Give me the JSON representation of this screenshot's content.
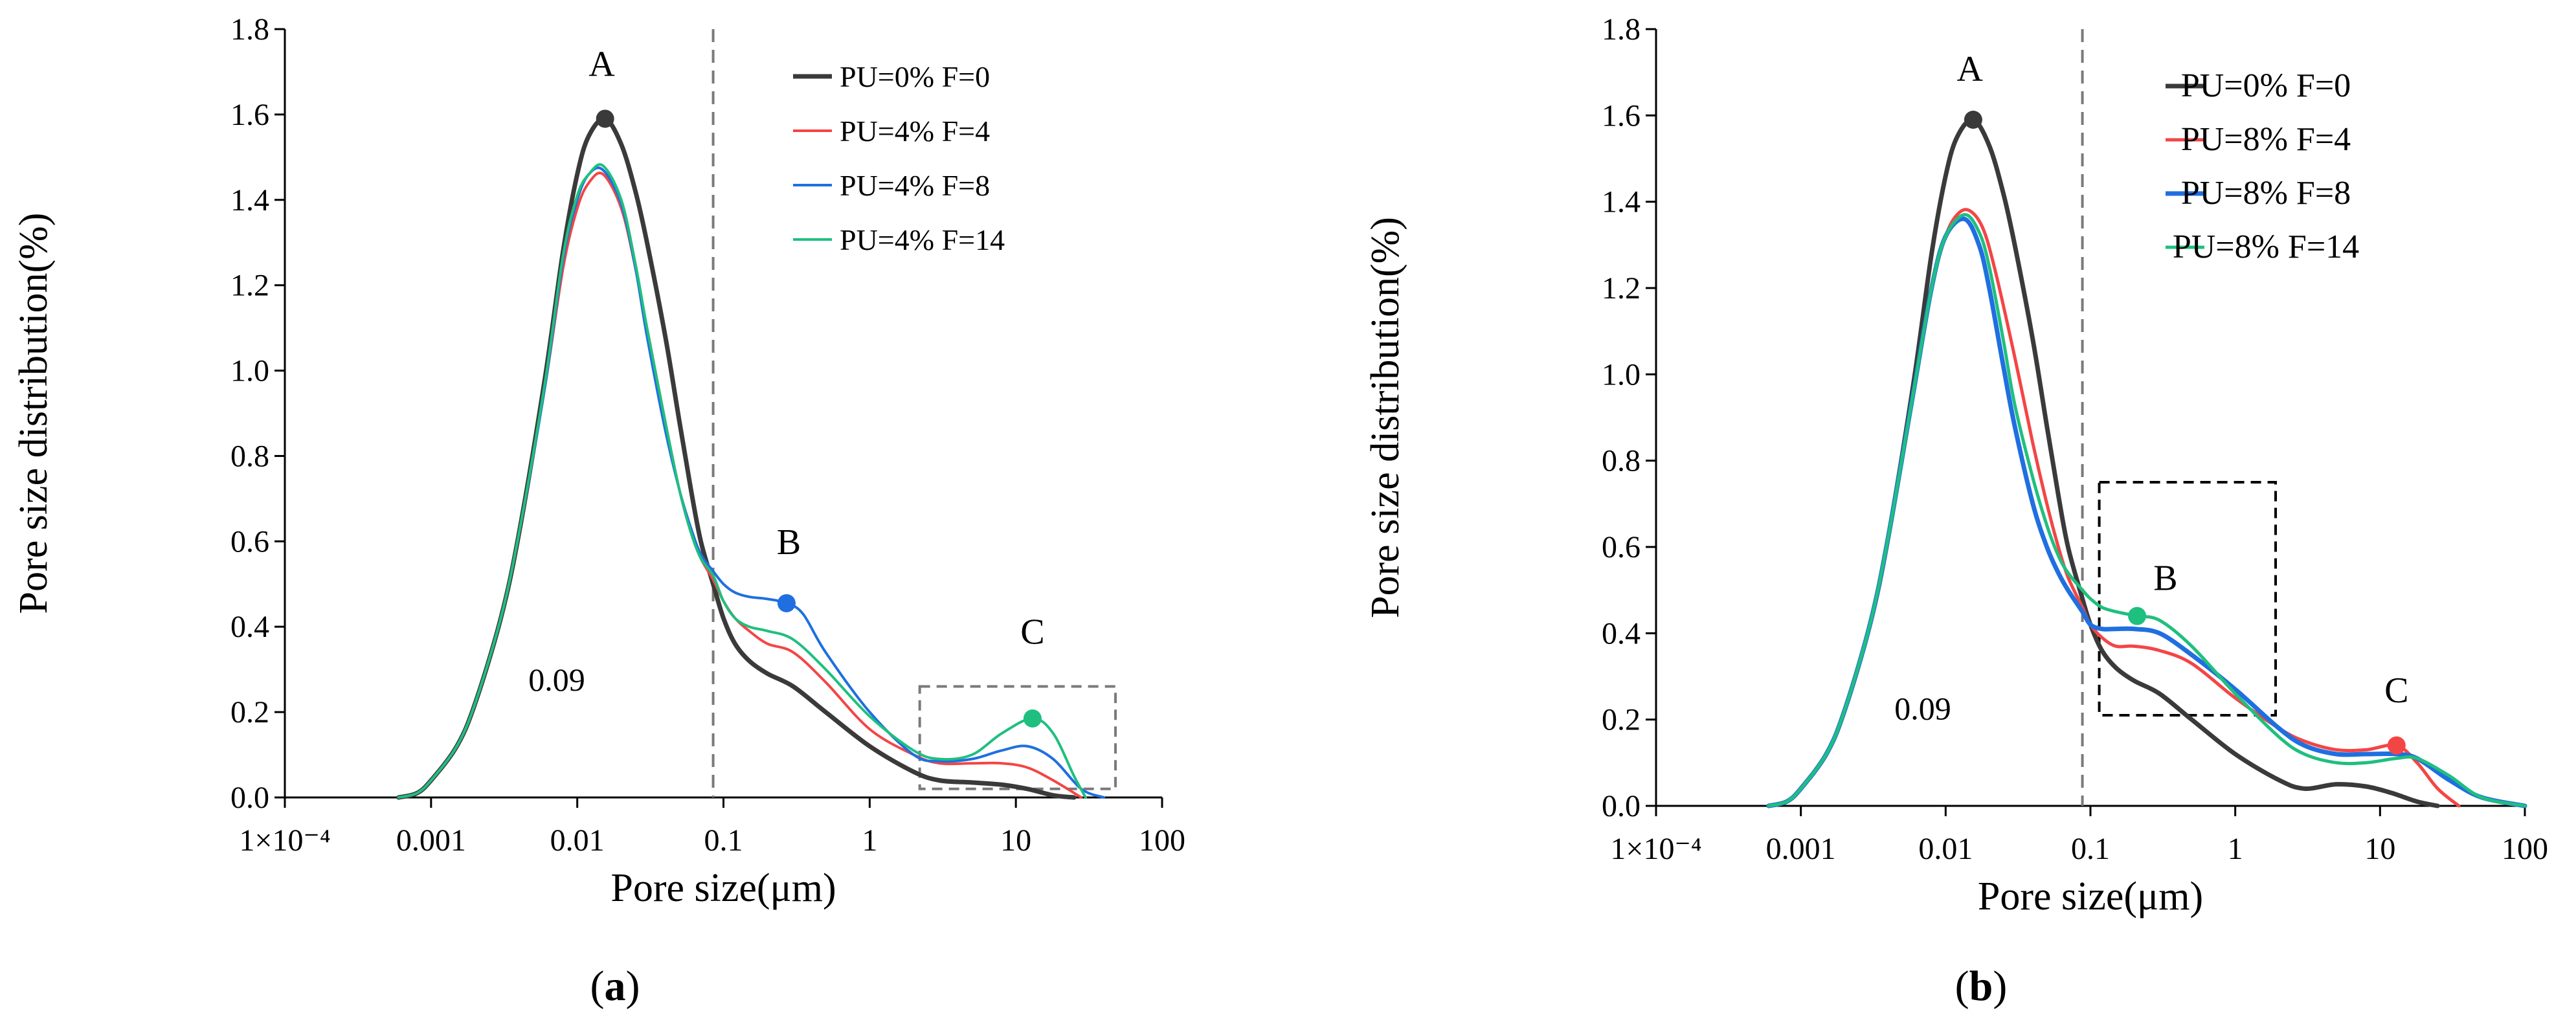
{
  "colors": {
    "ref": "#3a3a3a",
    "red": "#f44545",
    "blue": "#1f6fe0",
    "green": "#1fbf7f",
    "axis": "#000000",
    "guide": "#7a7a7a"
  },
  "chart_data": [
    {
      "type": "line",
      "panel_label_open": "(",
      "panel_label": "a",
      "panel_label_close": ")",
      "xlabel": "Pore size(μm)",
      "ylabel": "Pore size distribution(%)",
      "xscale": "log",
      "xlim": [
        0.0001,
        100
      ],
      "ylim": [
        0,
        1.8
      ],
      "xticks": [
        {
          "value": 0.0001,
          "label": "1×10⁻⁴"
        },
        {
          "value": 0.001,
          "label": "0.001"
        },
        {
          "value": 0.01,
          "label": "0.01"
        },
        {
          "value": 0.1,
          "label": "0.1"
        },
        {
          "value": 1,
          "label": "1"
        },
        {
          "value": 10,
          "label": "10"
        },
        {
          "value": 100,
          "label": "100"
        }
      ],
      "yticks": [
        "0.0",
        "0.2",
        "0.4",
        "0.6",
        "0.8",
        "1.0",
        "1.2",
        "1.4",
        "1.6",
        "1.8"
      ],
      "legend_position": "top-right",
      "vline": {
        "x": 0.085,
        "label": "0.09",
        "label_y": 0.25
      },
      "box": {
        "x": [
          2.2,
          48
        ],
        "y": [
          0.02,
          0.26
        ]
      },
      "annotations": [
        {
          "label": "A",
          "x": 0.0147,
          "y": 1.69
        },
        {
          "label": "B",
          "x": 0.28,
          "y": 0.57
        },
        {
          "label": "C",
          "x": 13,
          "y": 0.36
        }
      ],
      "markers": [
        {
          "series": 0,
          "x": 0.0155,
          "y": 1.59
        },
        {
          "series": 2,
          "x": 0.27,
          "y": 0.455
        },
        {
          "series": 3,
          "x": 13,
          "y": 0.185
        }
      ],
      "series": [
        {
          "name": "PU=0% F=0",
          "color": "#3a3a3a",
          "width": 7,
          "x": [
            0.0006,
            0.0008,
            0.001,
            0.0015,
            0.002,
            0.003,
            0.004,
            0.006,
            0.008,
            0.01,
            0.012,
            0.0155,
            0.02,
            0.025,
            0.03,
            0.04,
            0.05,
            0.06,
            0.07,
            0.085,
            0.1,
            0.12,
            0.15,
            0.2,
            0.3,
            0.5,
            1,
            2,
            3,
            5,
            8,
            12,
            18,
            25
          ],
          "y": [
            0,
            0.01,
            0.04,
            0.12,
            0.22,
            0.42,
            0.62,
            0.98,
            1.28,
            1.46,
            1.55,
            1.59,
            1.53,
            1.42,
            1.3,
            1.08,
            0.88,
            0.72,
            0.6,
            0.5,
            0.42,
            0.36,
            0.32,
            0.29,
            0.26,
            0.2,
            0.12,
            0.06,
            0.04,
            0.035,
            0.03,
            0.02,
            0.005,
            0
          ]
        },
        {
          "name": "PU=4% F=4",
          "color": "#f44545",
          "width": 4,
          "x": [
            0.0006,
            0.0008,
            0.001,
            0.0015,
            0.002,
            0.003,
            0.004,
            0.006,
            0.008,
            0.01,
            0.012,
            0.015,
            0.02,
            0.025,
            0.03,
            0.04,
            0.05,
            0.06,
            0.07,
            0.085,
            0.1,
            0.12,
            0.15,
            0.2,
            0.3,
            0.5,
            1,
            2,
            3,
            5,
            8,
            12,
            18,
            28
          ],
          "y": [
            0,
            0.01,
            0.04,
            0.12,
            0.22,
            0.42,
            0.62,
            0.96,
            1.24,
            1.38,
            1.44,
            1.46,
            1.38,
            1.24,
            1.1,
            0.88,
            0.72,
            0.62,
            0.56,
            0.51,
            0.46,
            0.42,
            0.39,
            0.36,
            0.34,
            0.27,
            0.16,
            0.1,
            0.08,
            0.08,
            0.08,
            0.07,
            0.04,
            0
          ]
        },
        {
          "name": "PU=4% F=8",
          "color": "#1f6fe0",
          "width": 4,
          "x": [
            0.0006,
            0.0008,
            0.001,
            0.0015,
            0.002,
            0.003,
            0.004,
            0.006,
            0.008,
            0.01,
            0.012,
            0.015,
            0.02,
            0.025,
            0.03,
            0.04,
            0.05,
            0.06,
            0.07,
            0.085,
            0.1,
            0.12,
            0.15,
            0.2,
            0.27,
            0.35,
            0.5,
            1,
            2,
            3,
            5,
            8,
            12,
            18,
            28,
            40
          ],
          "y": [
            0,
            0.01,
            0.04,
            0.12,
            0.22,
            0.42,
            0.62,
            0.96,
            1.26,
            1.4,
            1.46,
            1.47,
            1.39,
            1.24,
            1.08,
            0.86,
            0.72,
            0.63,
            0.57,
            0.53,
            0.5,
            0.48,
            0.47,
            0.465,
            0.455,
            0.43,
            0.34,
            0.2,
            0.1,
            0.085,
            0.09,
            0.11,
            0.12,
            0.09,
            0.02,
            0
          ]
        },
        {
          "name": "PU=4% F=14",
          "color": "#1fbf7f",
          "width": 4,
          "x": [
            0.0006,
            0.0008,
            0.001,
            0.0015,
            0.002,
            0.003,
            0.004,
            0.006,
            0.008,
            0.01,
            0.012,
            0.015,
            0.02,
            0.025,
            0.03,
            0.04,
            0.05,
            0.06,
            0.07,
            0.085,
            0.1,
            0.12,
            0.15,
            0.2,
            0.3,
            0.5,
            1,
            2,
            3,
            5,
            8,
            13,
            18,
            25,
            30
          ],
          "y": [
            0,
            0.01,
            0.04,
            0.12,
            0.22,
            0.42,
            0.62,
            0.97,
            1.27,
            1.41,
            1.46,
            1.48,
            1.4,
            1.25,
            1.1,
            0.88,
            0.72,
            0.62,
            0.56,
            0.52,
            0.46,
            0.42,
            0.4,
            0.39,
            0.37,
            0.3,
            0.19,
            0.11,
            0.09,
            0.1,
            0.15,
            0.185,
            0.15,
            0.05,
            0
          ]
        }
      ]
    },
    {
      "type": "line",
      "panel_label_open": "(",
      "panel_label": "b",
      "panel_label_close": ")",
      "xlabel": "Pore size(μm)",
      "ylabel": "Pore size distribution(%)",
      "xscale": "log",
      "xlim": [
        0.0001,
        100
      ],
      "ylim": [
        0,
        1.8
      ],
      "xticks": [
        {
          "value": 0.0001,
          "label": "1×10⁻⁴"
        },
        {
          "value": 0.001,
          "label": "0.001"
        },
        {
          "value": 0.01,
          "label": "0.01"
        },
        {
          "value": 0.1,
          "label": "0.1"
        },
        {
          "value": 1,
          "label": "1"
        },
        {
          "value": 10,
          "label": "10"
        },
        {
          "value": 100,
          "label": "100"
        }
      ],
      "yticks": [
        "0.0",
        "0.2",
        "0.4",
        "0.6",
        "0.8",
        "1.0",
        "1.2",
        "1.4",
        "1.6",
        "1.8"
      ],
      "legend_position": "top-right",
      "vline": {
        "x": 0.088,
        "label": "0.09",
        "label_y": 0.2
      },
      "box": {
        "x": [
          0.115,
          1.9
        ],
        "y": [
          0.21,
          0.75
        ]
      },
      "annotations": [
        {
          "label": "A",
          "x": 0.0147,
          "y": 1.68
        },
        {
          "label": "B",
          "x": 0.33,
          "y": 0.5
        },
        {
          "label": "C",
          "x": 13,
          "y": 0.24
        }
      ],
      "markers": [
        {
          "series": 0,
          "x": 0.0155,
          "y": 1.59
        },
        {
          "series": 3,
          "x": 0.21,
          "y": 0.44
        },
        {
          "series": 1,
          "x": 13,
          "y": 0.14
        }
      ],
      "series": [
        {
          "name": "PU=0% F=0",
          "color": "#3a3a3a",
          "width": 7,
          "x": [
            0.0006,
            0.0008,
            0.001,
            0.0015,
            0.002,
            0.003,
            0.004,
            0.006,
            0.008,
            0.01,
            0.012,
            0.0155,
            0.02,
            0.025,
            0.03,
            0.04,
            0.05,
            0.06,
            0.07,
            0.088,
            0.1,
            0.12,
            0.15,
            0.2,
            0.3,
            0.5,
            1,
            2,
            3,
            5,
            8,
            12,
            18,
            25
          ],
          "y": [
            0,
            0.01,
            0.04,
            0.12,
            0.22,
            0.42,
            0.62,
            0.98,
            1.28,
            1.46,
            1.55,
            1.59,
            1.53,
            1.42,
            1.3,
            1.08,
            0.88,
            0.72,
            0.6,
            0.48,
            0.42,
            0.36,
            0.32,
            0.29,
            0.26,
            0.2,
            0.12,
            0.06,
            0.04,
            0.05,
            0.045,
            0.03,
            0.01,
            0
          ]
        },
        {
          "name": "PU=8% F=4",
          "color": "#f44545",
          "width": 5,
          "x": [
            0.0006,
            0.0008,
            0.001,
            0.0015,
            0.002,
            0.003,
            0.004,
            0.006,
            0.008,
            0.01,
            0.012,
            0.0145,
            0.018,
            0.022,
            0.03,
            0.04,
            0.05,
            0.06,
            0.07,
            0.088,
            0.1,
            0.12,
            0.15,
            0.2,
            0.3,
            0.5,
            1,
            2,
            3,
            5,
            8,
            13,
            18,
            25,
            35
          ],
          "y": [
            0,
            0.01,
            0.04,
            0.12,
            0.22,
            0.42,
            0.62,
            0.96,
            1.2,
            1.32,
            1.37,
            1.38,
            1.34,
            1.24,
            1.04,
            0.84,
            0.7,
            0.6,
            0.53,
            0.46,
            0.42,
            0.39,
            0.37,
            0.37,
            0.36,
            0.33,
            0.25,
            0.18,
            0.15,
            0.13,
            0.13,
            0.14,
            0.1,
            0.04,
            0
          ]
        },
        {
          "name": "PU=8% F=8",
          "color": "#1f6fe0",
          "width": 7,
          "x": [
            0.0006,
            0.0008,
            0.001,
            0.0015,
            0.002,
            0.003,
            0.004,
            0.006,
            0.008,
            0.01,
            0.0135,
            0.017,
            0.02,
            0.025,
            0.03,
            0.04,
            0.05,
            0.06,
            0.07,
            0.088,
            0.1,
            0.12,
            0.15,
            0.2,
            0.3,
            0.5,
            1,
            2,
            3,
            5,
            8,
            13,
            18,
            30,
            50,
            100
          ],
          "y": [
            0,
            0.01,
            0.04,
            0.12,
            0.22,
            0.42,
            0.62,
            0.96,
            1.2,
            1.32,
            1.36,
            1.3,
            1.2,
            1.02,
            0.88,
            0.7,
            0.6,
            0.54,
            0.5,
            0.45,
            0.42,
            0.41,
            0.41,
            0.41,
            0.4,
            0.35,
            0.27,
            0.18,
            0.14,
            0.12,
            0.12,
            0.12,
            0.11,
            0.06,
            0.02,
            0
          ]
        },
        {
          "name": "PU=8% F=14",
          "color": "#1fbf7f",
          "width": 5,
          "x": [
            0.0006,
            0.0008,
            0.001,
            0.0015,
            0.002,
            0.003,
            0.004,
            0.006,
            0.008,
            0.01,
            0.0135,
            0.017,
            0.02,
            0.025,
            0.03,
            0.04,
            0.05,
            0.06,
            0.07,
            0.088,
            0.1,
            0.12,
            0.15,
            0.21,
            0.3,
            0.5,
            1,
            2,
            3,
            5,
            8,
            13,
            18,
            30,
            50,
            100
          ],
          "y": [
            0,
            0.01,
            0.04,
            0.12,
            0.22,
            0.42,
            0.62,
            0.96,
            1.2,
            1.32,
            1.37,
            1.33,
            1.25,
            1.08,
            0.93,
            0.76,
            0.65,
            0.58,
            0.54,
            0.5,
            0.48,
            0.46,
            0.45,
            0.44,
            0.43,
            0.37,
            0.26,
            0.16,
            0.12,
            0.1,
            0.1,
            0.11,
            0.11,
            0.07,
            0.02,
            0
          ]
        }
      ]
    }
  ]
}
